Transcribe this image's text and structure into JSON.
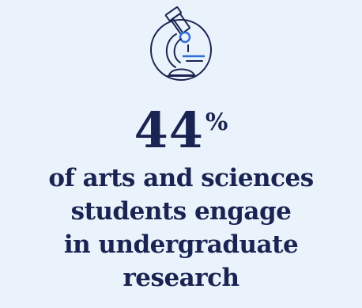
{
  "stat": {
    "value": "44",
    "unit": "%"
  },
  "caption": {
    "lines": [
      "of arts and sciences",
      "students engage",
      "in undergraduate",
      "research"
    ]
  },
  "icon": {
    "name": "microscope-icon"
  },
  "colors": {
    "background": "#eaf3fb",
    "text": "#1a2452",
    "accent": "#2f6fd6"
  }
}
